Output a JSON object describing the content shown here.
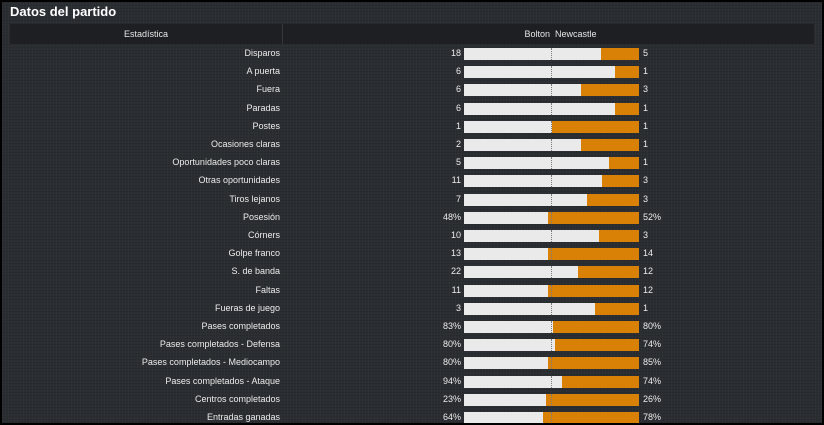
{
  "title": "Datos del partido",
  "header": {
    "stat_label": "Estadística",
    "home_team": "Bolton",
    "away_team": "Newcastle"
  },
  "colors": {
    "home_bar": "#eaeaea",
    "away_bar": "#d98106"
  },
  "stats": [
    {
      "label": "Disparos",
      "home": "18",
      "away": "5",
      "home_share": 0.78
    },
    {
      "label": "A puerta",
      "home": "6",
      "away": "1",
      "home_share": 0.86
    },
    {
      "label": "Fuera",
      "home": "6",
      "away": "3",
      "home_share": 0.67
    },
    {
      "label": "Paradas",
      "home": "6",
      "away": "1",
      "home_share": 0.86
    },
    {
      "label": "Postes",
      "home": "1",
      "away": "1",
      "home_share": 0.5
    },
    {
      "label": "Ocasiones claras",
      "home": "2",
      "away": "1",
      "home_share": 0.67
    },
    {
      "label": "Oportunidades poco claras",
      "home": "5",
      "away": "1",
      "home_share": 0.83
    },
    {
      "label": "Otras oportunidades",
      "home": "11",
      "away": "3",
      "home_share": 0.79
    },
    {
      "label": "Tiros lejanos",
      "home": "7",
      "away": "3",
      "home_share": 0.7
    },
    {
      "label": "Posesión",
      "home": "48%",
      "away": "52%",
      "home_share": 0.48
    },
    {
      "label": "Córners",
      "home": "10",
      "away": "3",
      "home_share": 0.77
    },
    {
      "label": "Golpe franco",
      "home": "13",
      "away": "14",
      "home_share": 0.48
    },
    {
      "label": "S. de banda",
      "home": "22",
      "away": "12",
      "home_share": 0.65
    },
    {
      "label": "Faltas",
      "home": "11",
      "away": "12",
      "home_share": 0.48
    },
    {
      "label": "Fueras de juego",
      "home": "3",
      "away": "1",
      "home_share": 0.75
    },
    {
      "label": "Pases completados",
      "home": "83%",
      "away": "80%",
      "home_share": 0.51
    },
    {
      "label": "Pases completados - Defensa",
      "home": "80%",
      "away": "74%",
      "home_share": 0.52
    },
    {
      "label": "Pases completados - Mediocampo",
      "home": "80%",
      "away": "85%",
      "home_share": 0.48
    },
    {
      "label": "Pases completados - Ataque",
      "home": "94%",
      "away": "74%",
      "home_share": 0.56
    },
    {
      "label": "Centros completados",
      "home": "23%",
      "away": "26%",
      "home_share": 0.47
    },
    {
      "label": "Entradas ganadas",
      "home": "64%",
      "away": "78%",
      "home_share": 0.45
    }
  ]
}
